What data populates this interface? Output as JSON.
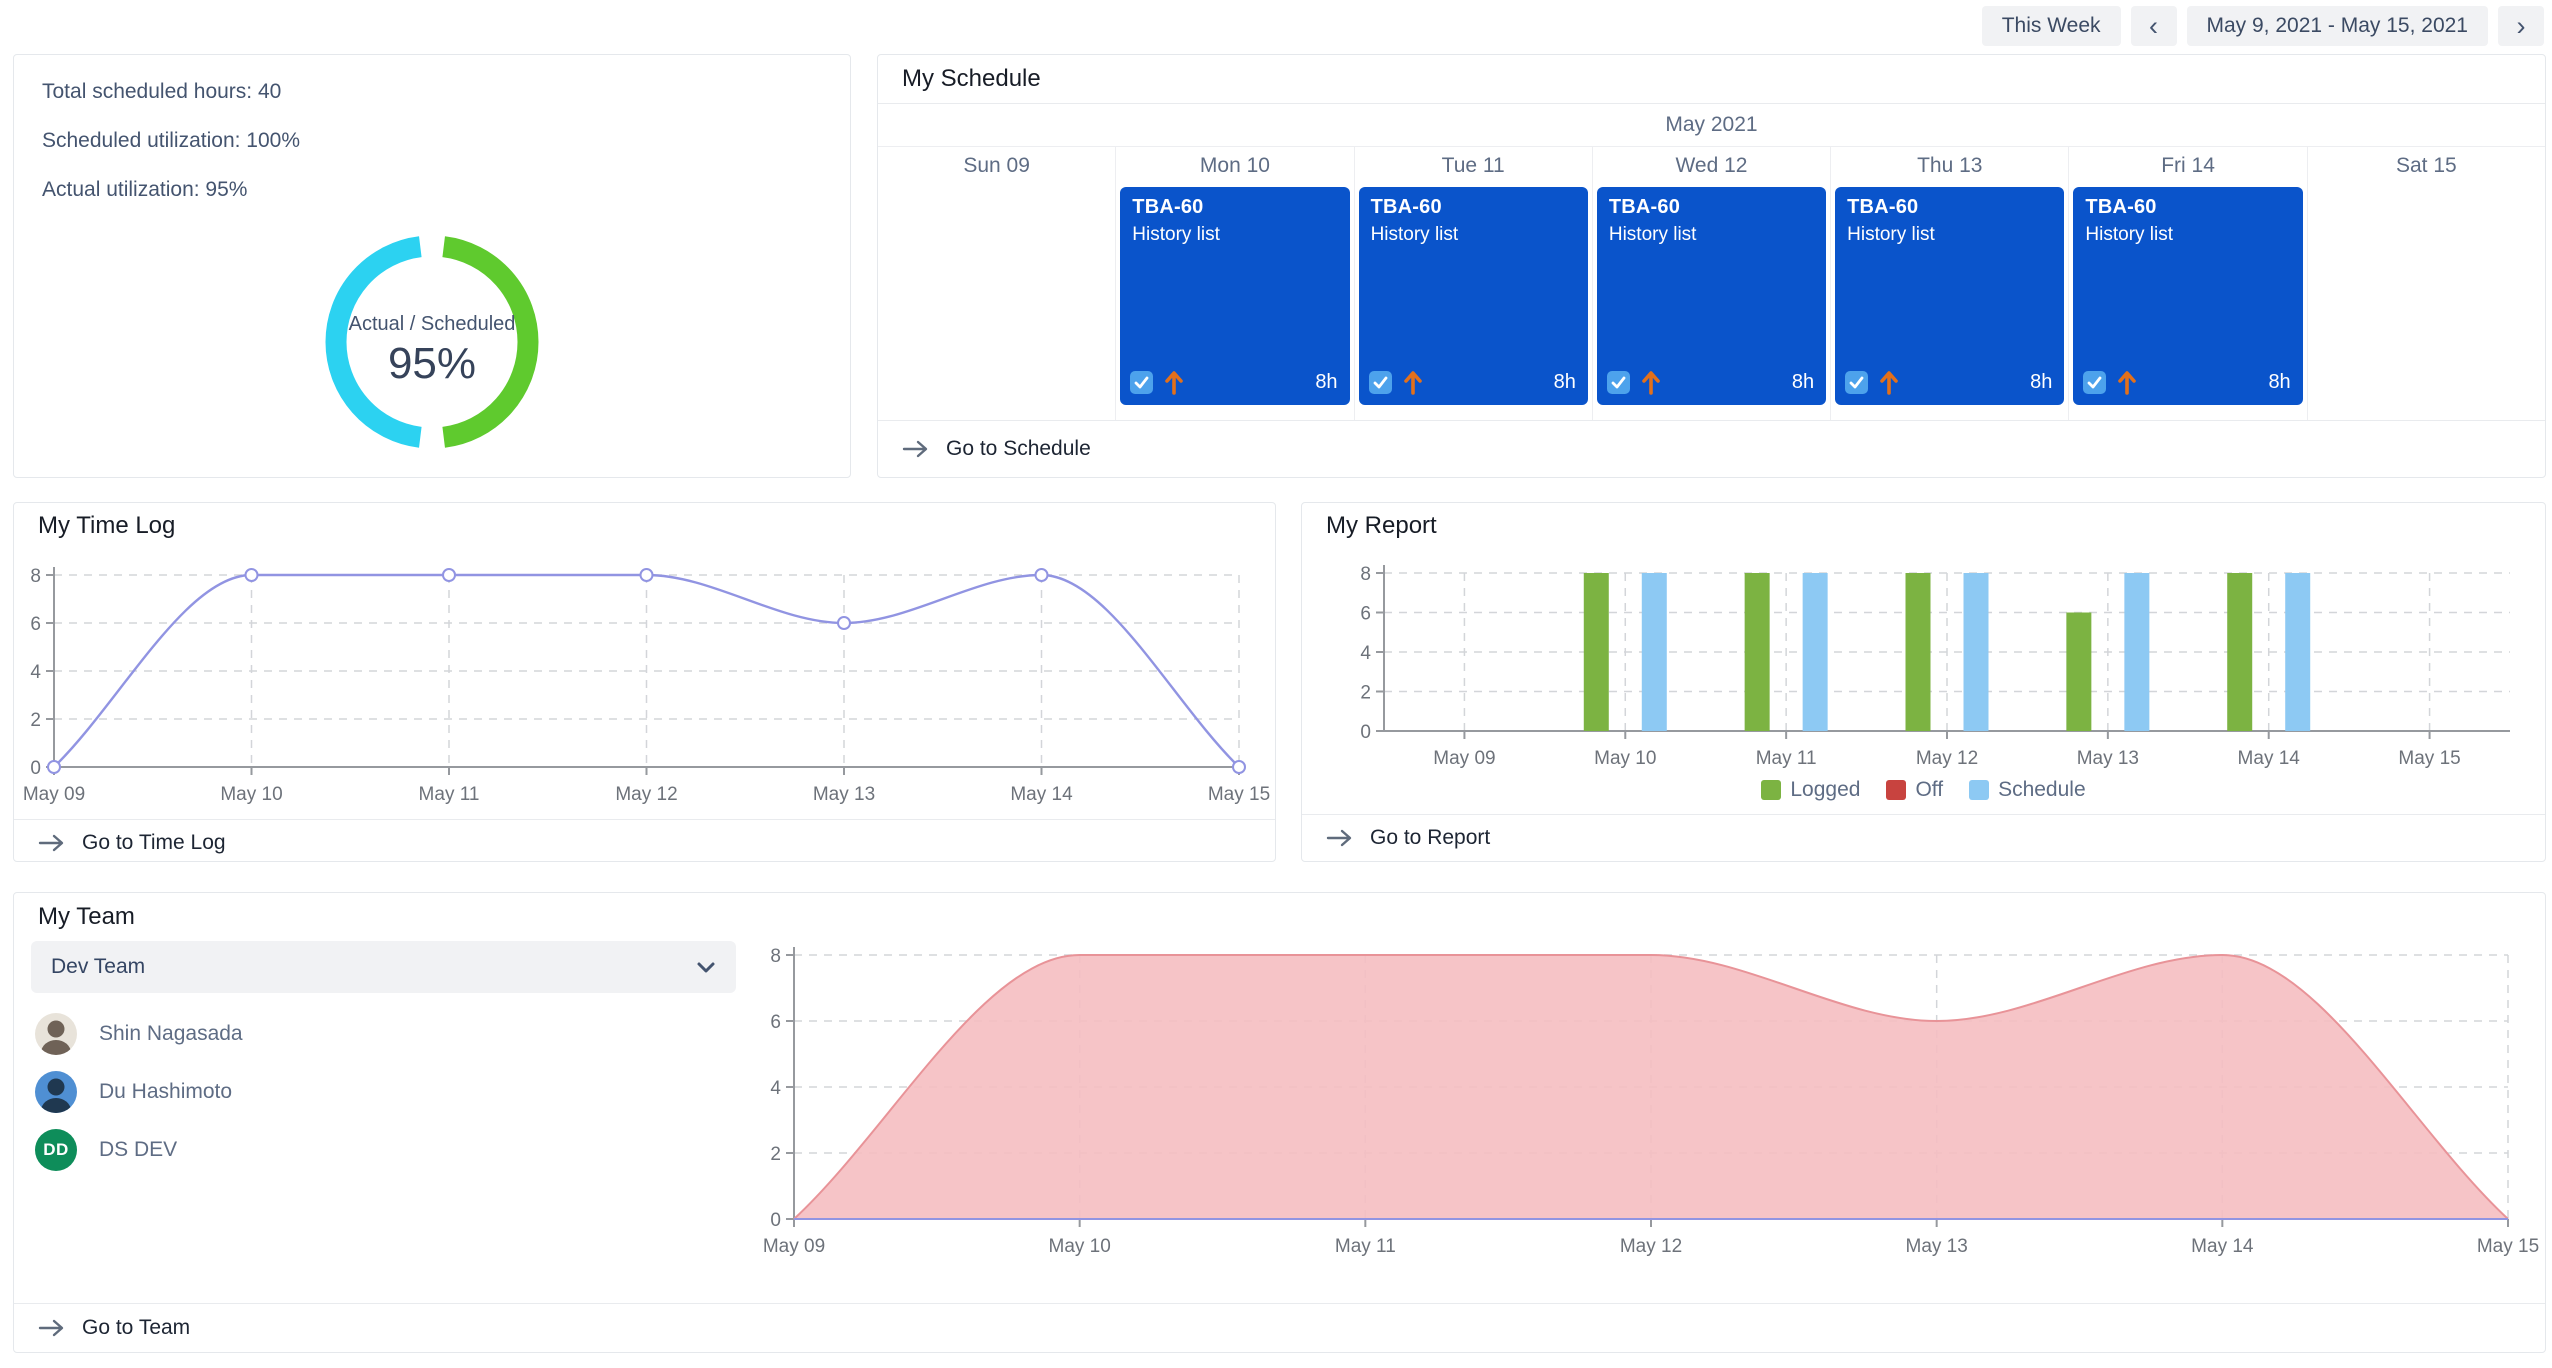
{
  "topbar": {
    "this_week": "This Week",
    "prev_icon": "‹",
    "next_icon": "›",
    "date_range": "May 9, 2021 - May 15, 2021"
  },
  "utilization": {
    "stats": [
      "Total scheduled hours: 40",
      "Scheduled utilization: 100%",
      "Actual utilization: 95%"
    ],
    "donut": {
      "label": "Actual / Scheduled",
      "percent": "95%"
    }
  },
  "schedule": {
    "title": "My Schedule",
    "month": "May 2021",
    "days": [
      "Sun 09",
      "Mon 10",
      "Tue 11",
      "Wed 12",
      "Thu 13",
      "Fri 14",
      "Sat 15"
    ],
    "events": [
      null,
      {
        "code": "TBA-60",
        "name": "History list",
        "hours": "8h"
      },
      {
        "code": "TBA-60",
        "name": "History list",
        "hours": "8h"
      },
      {
        "code": "TBA-60",
        "name": "History list",
        "hours": "8h"
      },
      {
        "code": "TBA-60",
        "name": "History list",
        "hours": "8h"
      },
      {
        "code": "TBA-60",
        "name": "History list",
        "hours": "8h"
      },
      null
    ],
    "goto": "Go to Schedule"
  },
  "timelog": {
    "title": "My Time Log",
    "goto": "Go to Time Log"
  },
  "report": {
    "title": "My Report",
    "goto": "Go to Report",
    "legend": [
      {
        "label": "Logged",
        "color": "#7cb342"
      },
      {
        "label": "Off",
        "color": "#c8433f"
      },
      {
        "label": "Schedule",
        "color": "#8dc9f3"
      }
    ]
  },
  "team": {
    "title": "My Team",
    "dropdown": {
      "value": "Dev Team"
    },
    "members": [
      {
        "name": "Shin Nagasada",
        "avatar": {
          "type": "photo",
          "bg": "#e8e3da",
          "fg": "#6f6257"
        }
      },
      {
        "name": "Du Hashimoto",
        "avatar": {
          "type": "photo",
          "bg": "#4f8fd3",
          "fg": "#1f3850"
        }
      },
      {
        "name": "DS DEV",
        "avatar": {
          "type": "initials",
          "initials": "DD",
          "bg": "#0e8d5a"
        }
      }
    ],
    "goto": "Go to Team"
  },
  "chart_data": [
    {
      "id": "utilization_donut",
      "type": "pie",
      "title": "Actual / Scheduled",
      "center_label": "95%",
      "segments": [
        {
          "name": "actual",
          "color": "#2cd2f1",
          "start_deg": 187,
          "end_deg": 353
        },
        {
          "name": "scheduled",
          "color": "#5fca2e",
          "start_deg": 7,
          "end_deg": 173
        }
      ]
    },
    {
      "id": "my_time_log",
      "type": "line",
      "title": "My Time Log",
      "x": [
        "May 09",
        "May 10",
        "May 11",
        "May 12",
        "May 13",
        "May 14",
        "May 15"
      ],
      "values": [
        0,
        8,
        8,
        8,
        6,
        8,
        0
      ],
      "ylim": [
        0,
        8
      ],
      "yticks": [
        0,
        2,
        4,
        6,
        8
      ],
      "color": "#9194e2",
      "grid": "dashed"
    },
    {
      "id": "my_report",
      "type": "bar",
      "title": "My Report",
      "categories": [
        "May 09",
        "May 10",
        "May 11",
        "May 12",
        "May 13",
        "May 14",
        "May 15"
      ],
      "series": [
        {
          "name": "Logged",
          "color": "#7cb342",
          "values": [
            0,
            8,
            8,
            8,
            6,
            8,
            0
          ]
        },
        {
          "name": "Off",
          "color": "#c8433f",
          "values": [
            0,
            0,
            0,
            0,
            0,
            0,
            0
          ]
        },
        {
          "name": "Schedule",
          "color": "#8dc9f3",
          "values": [
            0,
            8,
            8,
            8,
            8,
            8,
            0
          ]
        }
      ],
      "ylim": [
        0,
        8
      ],
      "yticks": [
        0,
        2,
        4,
        6,
        8
      ],
      "legend_position": "bottom",
      "grid": "dashed"
    },
    {
      "id": "my_team_area",
      "type": "area",
      "title": "My Team",
      "x": [
        "May 09",
        "May 10",
        "May 11",
        "May 12",
        "May 13",
        "May 14",
        "May 15"
      ],
      "values": [
        0,
        8,
        8,
        8,
        6,
        8,
        0
      ],
      "baseline_series": {
        "values": [
          0,
          0,
          0,
          0,
          0,
          0,
          0
        ],
        "color": "#9194e2"
      },
      "ylim": [
        0,
        8
      ],
      "yticks": [
        0,
        2,
        4,
        6,
        8
      ],
      "fill": "#f5bec1",
      "stroke": "#e89398",
      "grid": "dashed"
    }
  ]
}
